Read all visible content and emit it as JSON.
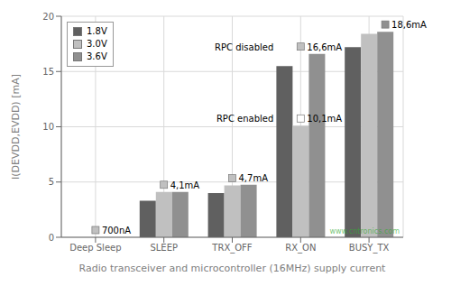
{
  "chart_data": {
    "type": "bar",
    "categories": [
      "Deep Sleep",
      "SLEEP",
      "TRX_OFF",
      "RX_ON",
      "BUSY_TX"
    ],
    "series": [
      {
        "name": "1.8V",
        "color": "#606060",
        "values": [
          0.0,
          3.3,
          4.0,
          15.5,
          17.2
        ]
      },
      {
        "name": "3.0V",
        "color": "#c0c0c0",
        "values": [
          0.0007,
          4.1,
          4.7,
          10.1,
          18.4
        ]
      },
      {
        "name": "3.6V",
        "color": "#909090",
        "values": [
          0.0,
          4.1,
          4.75,
          16.6,
          18.6
        ]
      }
    ],
    "xlabel": "Radio transceiver and microcontroller (16MHz) supply current",
    "ylabel": "I(DEVDD,EVDD) [mA]",
    "ylim": [
      0,
      20
    ],
    "yticks": [
      0,
      5,
      10,
      15,
      20
    ],
    "grid": true,
    "legend": "upper left",
    "annotations": [
      {
        "text": "700nA",
        "category": "Deep Sleep",
        "series": "3.0V",
        "color": "#c0c0c0"
      },
      {
        "text": "4,1mA",
        "category": "SLEEP",
        "series": "3.0V",
        "color": "#c0c0c0"
      },
      {
        "text": "4,7mA",
        "category": "TRX_OFF",
        "series": "3.0V",
        "color": "#c0c0c0"
      },
      {
        "text": "16,6mA",
        "label": "RPC disabled",
        "category": "RX_ON",
        "series": "3.6V",
        "color": "#c0c0c0"
      },
      {
        "text": "10,1mA",
        "label": "RPC enabled",
        "category": "RX_ON",
        "series": "3.0V",
        "color": "#ffffff"
      },
      {
        "text": "18,6mA",
        "category": "BUSY_TX",
        "series": "3.6V",
        "color": "#909090"
      },
      {
        "text": "www.cntronics.com",
        "color": "#33aa33"
      }
    ]
  }
}
